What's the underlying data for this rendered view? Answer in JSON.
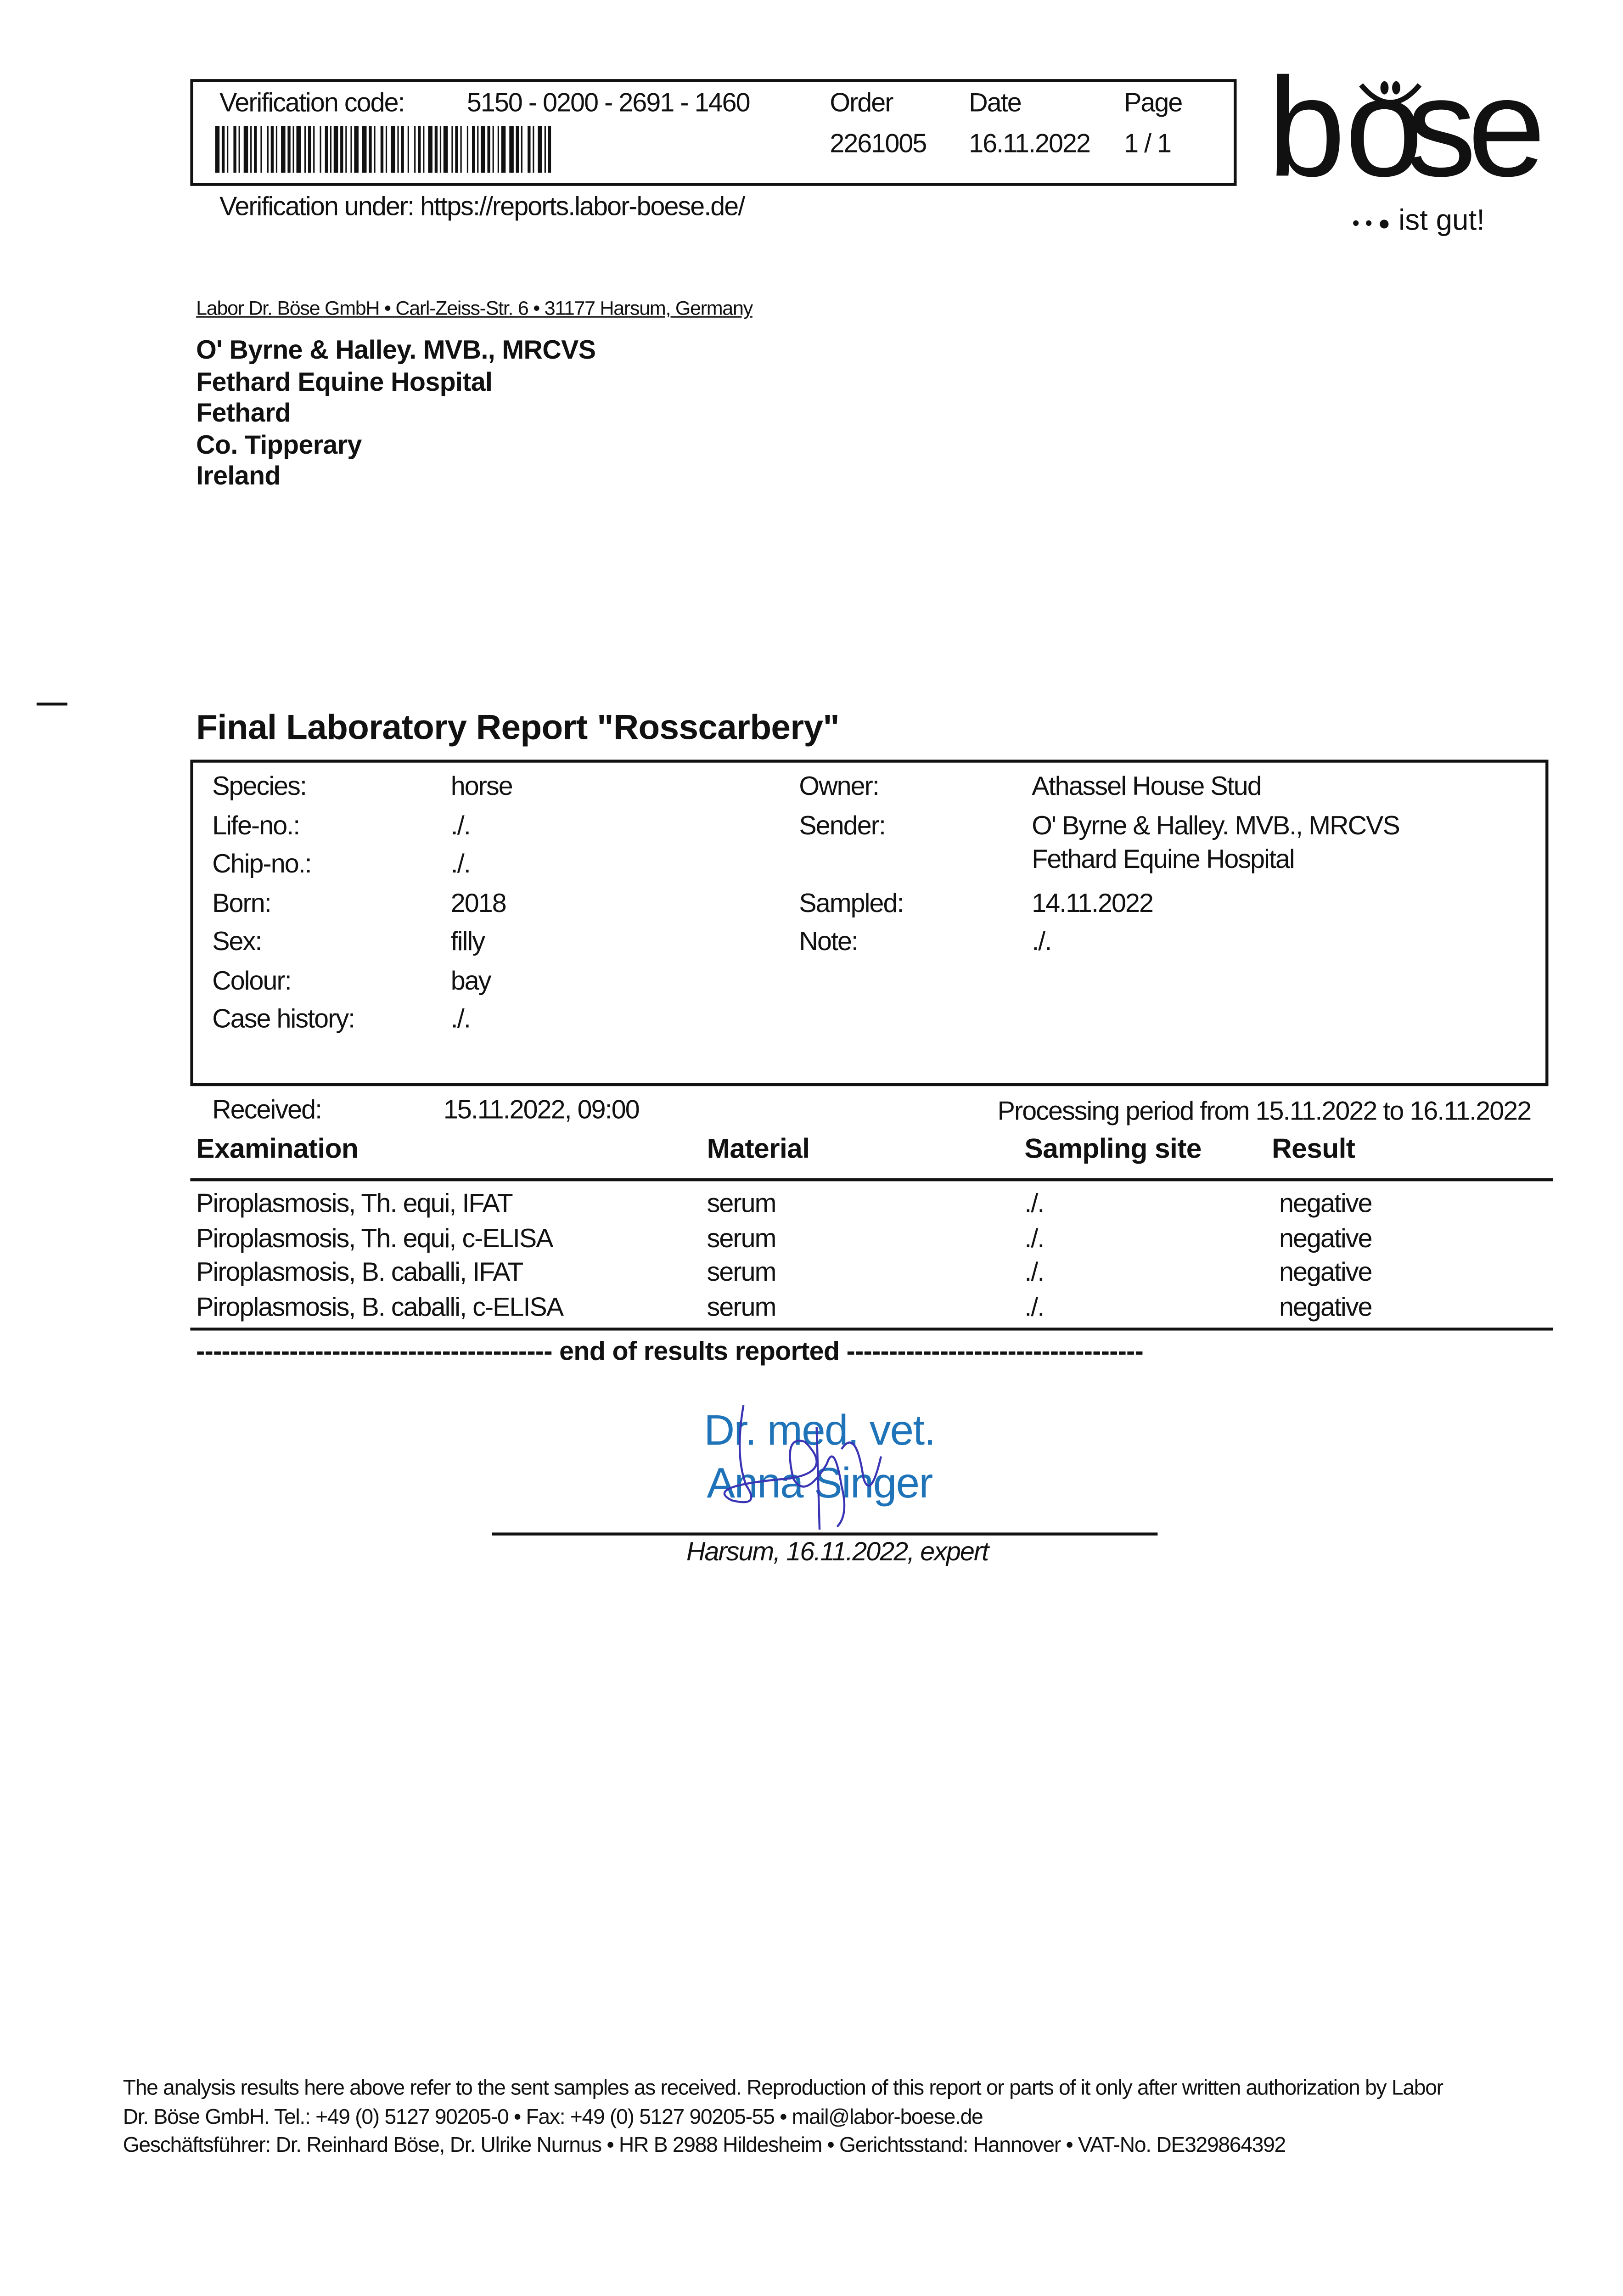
{
  "header": {
    "verification_label": "Verification code:",
    "verification_code": "5150 - 0200 - 2691 - 1460",
    "order_label": "Order",
    "order_value": "2261005",
    "date_label": "Date",
    "date_value": "16.11.2022",
    "page_label": "Page",
    "page_value": "1 / 1",
    "verification_under": "Verification under: https://reports.labor-boese.de/"
  },
  "logo": {
    "name": "böse",
    "tagline": "ist gut!"
  },
  "sender_line": "Labor Dr. Böse GmbH • Carl-Zeiss-Str. 6 • 31177 Harsum, Germany",
  "recipient": [
    "O' Byrne & Halley. MVB., MRCVS",
    "Fethard Equine Hospital",
    "Fethard",
    "Co. Tipperary",
    "Ireland"
  ],
  "title": "Final Laboratory Report \"Rosscarbery\"",
  "patient": {
    "left": [
      {
        "label": "Species:",
        "value": "horse"
      },
      {
        "label": "Life-no.:",
        "value": "./."
      },
      {
        "label": "Chip-no.:",
        "value": "./."
      },
      {
        "label": "Born:",
        "value": "2018"
      },
      {
        "label": "Sex:",
        "value": "filly"
      },
      {
        "label": "Colour:",
        "value": "bay"
      },
      {
        "label": "Case history:",
        "value": "./."
      }
    ],
    "owner_label": "Owner:",
    "owner": "Athassel House Stud",
    "sender_label": "Sender:",
    "sender": [
      "O' Byrne & Halley. MVB., MRCVS",
      "Fethard Equine Hospital"
    ],
    "sampled_label": "Sampled:",
    "sampled": "14.11.2022",
    "note_label": "Note:",
    "note": "./."
  },
  "received_label": "Received:",
  "received": "15.11.2022, 09:00",
  "processing": "Processing period from 15.11.2022 to 16.11.2022",
  "table": {
    "headers": [
      "Examination",
      "Material",
      "Sampling site",
      "Result"
    ],
    "rows": [
      [
        "Piroplasmosis, Th. equi, IFAT",
        "serum",
        "./.",
        "negative"
      ],
      [
        "Piroplasmosis, Th. equi, c-ELISA",
        "serum",
        "./.",
        "negative"
      ],
      [
        "Piroplasmosis, B. caballi, IFAT",
        "serum",
        "./.",
        "negative"
      ],
      [
        "Piroplasmosis, B. caballi, c-ELISA",
        "serum",
        "./.",
        "negative"
      ]
    ]
  },
  "end_line": "------------------------------------------ end of results reported -----------------------------------",
  "signature": {
    "line1": "Dr. med. vet.",
    "line2": "Anna Singer",
    "caption": "Harsum, 16.11.2022, expert",
    "color": "#1f73b8"
  },
  "footer": [
    "The analysis results here above refer to the sent samples as received. Reproduction of this report or parts of it only after written authorization by Labor",
    "Dr. Böse GmbH. Tel.: +49 (0) 5127 90205-0 • Fax: +49 (0) 5127 90205-55 • mail@labor-boese.de",
    "Geschäftsführer: Dr. Reinhard Böse, Dr. Ulrike Nurnus • HR B 2988 Hildesheim • Gerichtsstand: Hannover • VAT-No. DE329864392"
  ]
}
